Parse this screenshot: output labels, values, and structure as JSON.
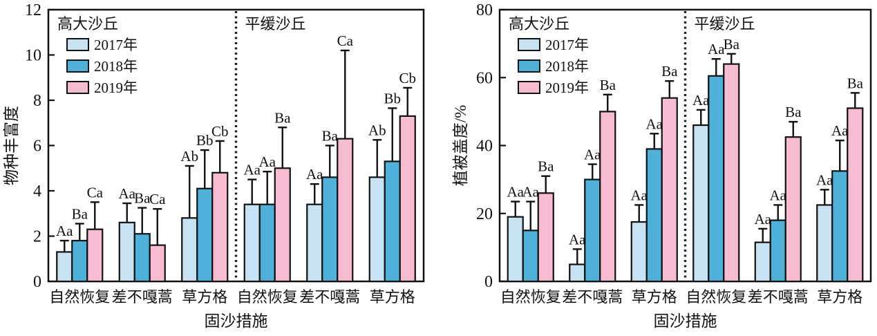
{
  "figure_name": "sand-fixation-dual-bar-charts",
  "shared": {
    "xlabel": "固沙措施",
    "legend": [
      "2017年",
      "2018年",
      "2019年"
    ],
    "regions": [
      "高大沙丘",
      "平缓沙丘"
    ],
    "categories": [
      "自然恢复",
      "差不嘎蒿",
      "草方格",
      "自然恢复",
      "差不嘎蒿",
      "草方格"
    ],
    "colors": {
      "2017": "#c7e2f2",
      "2018": "#4eb1d9",
      "2019": "#f8bcd2",
      "axis": "#111111"
    }
  },
  "chart_data": [
    {
      "type": "bar",
      "ylabel": "物种丰富度",
      "xlabel": "固沙措施",
      "ylim": [
        0,
        12
      ],
      "yticks": [
        0,
        2,
        4,
        6,
        8,
        10,
        12
      ],
      "grid": false,
      "legend_position": "top-left-inside",
      "region_titles": [
        "高大沙丘",
        "平缓沙丘"
      ],
      "categories": [
        "自然恢复",
        "差不嘎蒿",
        "草方格",
        "自然恢复",
        "差不嘎蒿",
        "草方格"
      ],
      "series": [
        {
          "name": "2017年",
          "color": "#c7e2f2",
          "values": [
            1.3,
            2.6,
            2.8,
            3.4,
            3.4,
            4.6
          ],
          "errors": [
            0.5,
            0.85,
            2.3,
            1.1,
            0.9,
            1.65
          ],
          "sig": [
            "Aa",
            "Aa",
            "Ab",
            "Aa",
            "Aa",
            "Ab"
          ]
        },
        {
          "name": "2018年",
          "color": "#4eb1d9",
          "values": [
            1.8,
            2.1,
            4.1,
            3.4,
            4.6,
            5.3
          ],
          "errors": [
            0.75,
            1.15,
            1.7,
            1.45,
            1.4,
            2.35
          ],
          "sig": [
            "Ba",
            "Ba",
            "Bb",
            "Aa",
            "Ba",
            "Bb"
          ]
        },
        {
          "name": "2019年",
          "color": "#f8bcd2",
          "values": [
            2.3,
            1.6,
            4.8,
            5.0,
            6.3,
            7.3
          ],
          "errors": [
            1.2,
            1.6,
            1.4,
            1.8,
            3.9,
            1.25
          ],
          "sig": [
            "Ca",
            "Ca",
            "Cb",
            "Ba",
            "Ca",
            "Cb"
          ]
        }
      ]
    },
    {
      "type": "bar",
      "ylabel": "植被盖度/%",
      "xlabel": "固沙措施",
      "ylim": [
        0,
        80
      ],
      "yticks": [
        0,
        20,
        40,
        60,
        80
      ],
      "grid": false,
      "legend_position": "top-left-inside",
      "region_titles": [
        "高大沙丘",
        "平缓沙丘"
      ],
      "categories": [
        "自然恢复",
        "差不嘎蒿",
        "草方格",
        "自然恢复",
        "差不嘎蒿",
        "草方格"
      ],
      "series": [
        {
          "name": "2017年",
          "color": "#c7e2f2",
          "values": [
            19,
            5,
            17.5,
            46,
            11.5,
            22.5
          ],
          "errors": [
            4.5,
            4.5,
            5,
            4.5,
            4,
            4.5
          ],
          "sig": [
            "Aa",
            "Aa",
            "Aa",
            "Aa",
            "Aa",
            "Aa"
          ]
        },
        {
          "name": "2018年",
          "color": "#4eb1d9",
          "values": [
            15,
            30,
            39,
            60.5,
            18,
            32.5
          ],
          "errors": [
            8.5,
            4.5,
            4.5,
            5,
            4.5,
            9
          ],
          "sig": [
            "Aa",
            "Aa",
            "Aa",
            "Aa",
            "Aa",
            "Aa"
          ]
        },
        {
          "name": "2019年",
          "color": "#f8bcd2",
          "values": [
            26,
            50,
            54,
            64,
            42.5,
            51
          ],
          "errors": [
            5,
            5,
            5,
            3,
            4.5,
            4.5
          ],
          "sig": [
            "Ba",
            "Ba",
            "Ba",
            "Ba",
            "Ba",
            "Ba"
          ]
        }
      ]
    }
  ]
}
